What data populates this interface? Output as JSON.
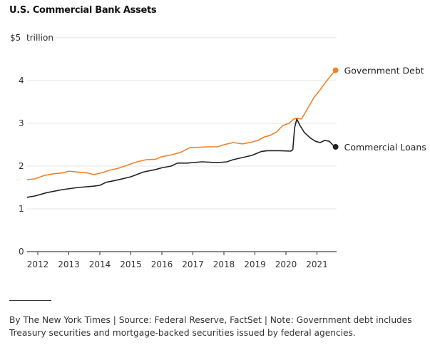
{
  "chart_data": {
    "type": "line",
    "title": "U.S. Commercial Bank Assets",
    "ylabel": "trillion",
    "y_unit_prefix": "$",
    "ylim": [
      0,
      5
    ],
    "yticks": [
      0,
      1,
      2,
      3,
      4,
      5
    ],
    "ytick_labels": [
      "0",
      "1",
      "2",
      "3",
      "4",
      "$5"
    ],
    "xlim": [
      2011.65,
      2021.65
    ],
    "xticks": [
      2012,
      2013,
      2014,
      2015,
      2016,
      2017,
      2018,
      2019,
      2020,
      2021
    ],
    "xtick_labels": [
      "2012",
      "2013",
      "2014",
      "2015",
      "2016",
      "2017",
      "2018",
      "2019",
      "2020",
      "2021"
    ],
    "grid": true,
    "legend": "direct labels at line ends",
    "series": [
      {
        "name": "Government Debt",
        "color": "#f58025",
        "x": [
          2011.65,
          2011.9,
          2012.2,
          2012.5,
          2012.8,
          2013.0,
          2013.3,
          2013.6,
          2013.8,
          2014.1,
          2014.3,
          2014.6,
          2014.8,
          2015.0,
          2015.2,
          2015.5,
          2015.8,
          2016.0,
          2016.3,
          2016.6,
          2016.9,
          2017.2,
          2017.5,
          2017.8,
          2018.0,
          2018.3,
          2018.6,
          2018.9,
          2019.1,
          2019.3,
          2019.5,
          2019.7,
          2019.9,
          2020.1,
          2020.25,
          2020.35,
          2020.5,
          2020.7,
          2020.9,
          2021.1,
          2021.3,
          2021.45,
          2021.6
        ],
        "y": [
          1.68,
          1.7,
          1.78,
          1.82,
          1.84,
          1.88,
          1.86,
          1.84,
          1.8,
          1.85,
          1.9,
          1.95,
          2.0,
          2.05,
          2.1,
          2.15,
          2.16,
          2.22,
          2.26,
          2.32,
          2.43,
          2.44,
          2.45,
          2.45,
          2.5,
          2.55,
          2.52,
          2.56,
          2.6,
          2.68,
          2.72,
          2.8,
          2.95,
          3.0,
          3.1,
          3.12,
          3.1,
          3.35,
          3.6,
          3.78,
          3.98,
          4.12,
          4.24
        ]
      },
      {
        "name": "Commercial Loans",
        "color": "#222222",
        "x": [
          2011.65,
          2011.9,
          2012.3,
          2012.8,
          2013.3,
          2013.8,
          2014.0,
          2014.2,
          2014.6,
          2015.0,
          2015.4,
          2015.8,
          2016.0,
          2016.3,
          2016.5,
          2016.8,
          2017.3,
          2017.8,
          2018.1,
          2018.3,
          2018.6,
          2018.9,
          2019.2,
          2019.4,
          2019.8,
          2020.15,
          2020.22,
          2020.28,
          2020.35,
          2020.45,
          2020.6,
          2020.8,
          2020.95,
          2021.1,
          2021.25,
          2021.4,
          2021.5,
          2021.6
        ],
        "y": [
          1.27,
          1.3,
          1.38,
          1.45,
          1.5,
          1.53,
          1.55,
          1.62,
          1.68,
          1.75,
          1.86,
          1.92,
          1.96,
          2.0,
          2.07,
          2.07,
          2.1,
          2.08,
          2.1,
          2.15,
          2.2,
          2.25,
          2.34,
          2.36,
          2.36,
          2.35,
          2.38,
          2.9,
          3.1,
          2.95,
          2.78,
          2.65,
          2.58,
          2.55,
          2.6,
          2.58,
          2.5,
          2.45
        ]
      }
    ]
  },
  "footer": {
    "note": "By The New York Times | Source: Federal Reserve, FactSet | Note: Government debt includes Treasury securities and mortgage-backed securities issued by federal agencies."
  }
}
